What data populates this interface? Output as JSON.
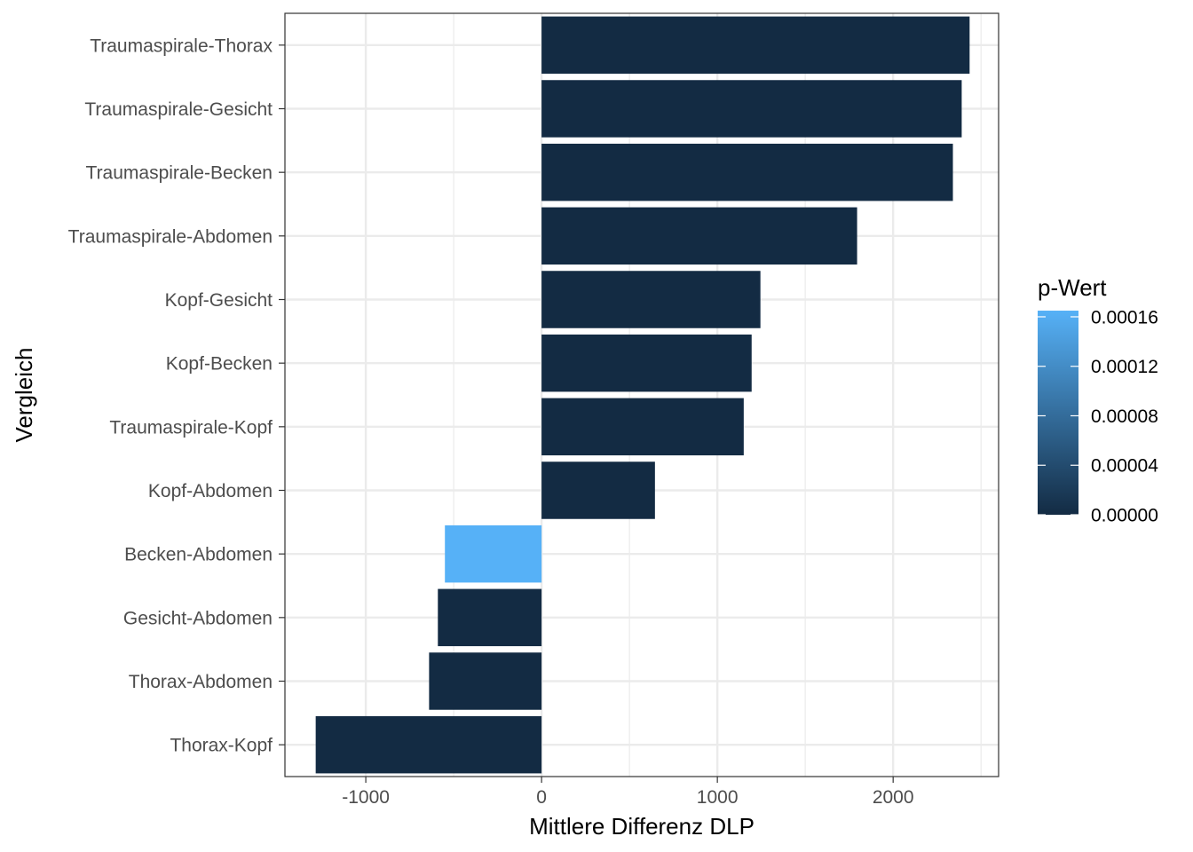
{
  "chart_data": {
    "type": "bar",
    "orientation": "horizontal",
    "title": "",
    "xlabel": "Mittlere Differenz DLP",
    "ylabel": "Vergleich",
    "xlim": [
      -1460,
      2600
    ],
    "x_ticks": [
      -1000,
      0,
      1000,
      2000
    ],
    "x_tick_labels": [
      "-1000",
      "0",
      "1000",
      "2000"
    ],
    "grid": true,
    "categories": [
      "Traumaspirale-Thorax",
      "Traumaspirale-Gesicht",
      "Traumaspirale-Becken",
      "Traumaspirale-Abdomen",
      "Kopf-Gesicht",
      "Kopf-Becken",
      "Traumaspirale-Kopf",
      "Kopf-Abdomen",
      "Becken-Abdomen",
      "Gesicht-Abdomen",
      "Thorax-Abdomen",
      "Thorax-Kopf"
    ],
    "values": [
      2435,
      2390,
      2340,
      1795,
      1245,
      1195,
      1150,
      645,
      -550,
      -590,
      -640,
      -1285
    ],
    "p_values": [
      0.0,
      0.0,
      0.0,
      0.0,
      0.0,
      0.0,
      0.0,
      0.0,
      0.000165,
      0.0,
      0.0,
      0.0
    ],
    "legend": {
      "title": "p-Wert",
      "position": "right",
      "type": "colorbar",
      "range": [
        0,
        0.000165
      ],
      "ticks": [
        0,
        4e-05,
        8e-05,
        0.00012,
        0.00016
      ],
      "tick_labels": [
        "0.00000",
        "0.00004",
        "0.00008",
        "0.00012",
        "0.00016"
      ],
      "low_color": "#132B43",
      "high_color": "#56B1F7"
    }
  }
}
